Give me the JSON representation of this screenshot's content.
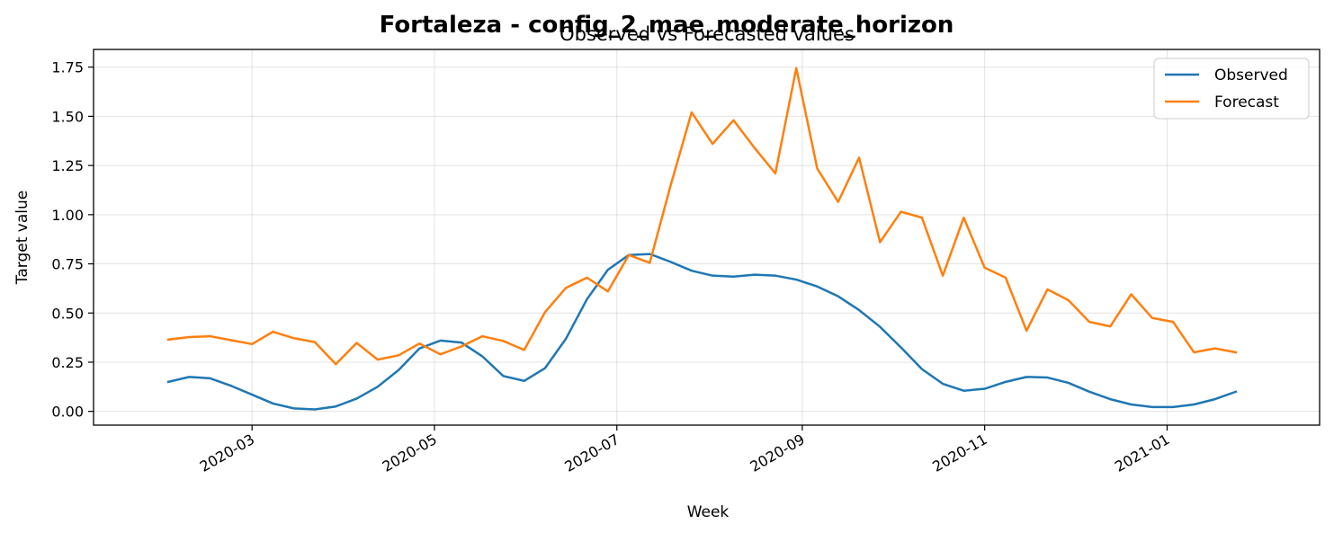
{
  "chart_data": {
    "type": "line",
    "title": "Fortaleza - config_2_mae_moderate_horizon",
    "subtitle": "Observed vs Forecasted values",
    "xlabel": "Week",
    "ylabel": "Target value",
    "ylim": [
      -0.07,
      1.84
    ],
    "xlim": [
      "2020-01-08",
      "2021-02-21"
    ],
    "y_ticks": [
      0.0,
      0.25,
      0.5,
      0.75,
      1.0,
      1.25,
      1.5,
      1.75
    ],
    "y_tick_labels": [
      "0.00",
      "0.25",
      "0.50",
      "0.75",
      "1.00",
      "1.25",
      "1.50",
      "1.75"
    ],
    "x_ticks": [
      "2020-03-01",
      "2020-05-01",
      "2020-07-01",
      "2020-09-01",
      "2020-11-01",
      "2021-01-01"
    ],
    "x_tick_labels": [
      "2020-03",
      "2020-05",
      "2020-07",
      "2020-09",
      "2020-11",
      "2021-01"
    ],
    "grid": true,
    "legend_position": "top-right",
    "x": [
      "2020-02-02",
      "2020-02-09",
      "2020-02-16",
      "2020-02-23",
      "2020-03-01",
      "2020-03-08",
      "2020-03-15",
      "2020-03-22",
      "2020-03-29",
      "2020-04-05",
      "2020-04-12",
      "2020-04-19",
      "2020-04-26",
      "2020-05-03",
      "2020-05-10",
      "2020-05-17",
      "2020-05-24",
      "2020-05-31",
      "2020-06-07",
      "2020-06-14",
      "2020-06-21",
      "2020-06-28",
      "2020-07-05",
      "2020-07-12",
      "2020-07-19",
      "2020-07-26",
      "2020-08-02",
      "2020-08-09",
      "2020-08-16",
      "2020-08-23",
      "2020-08-30",
      "2020-09-06",
      "2020-09-13",
      "2020-09-20",
      "2020-09-27",
      "2020-10-04",
      "2020-10-11",
      "2020-10-18",
      "2020-10-25",
      "2020-11-01",
      "2020-11-08",
      "2020-11-15",
      "2020-11-22",
      "2020-11-29",
      "2020-12-06",
      "2020-12-13",
      "2020-12-20",
      "2020-12-27",
      "2021-01-03",
      "2021-01-10",
      "2021-01-17",
      "2021-01-24"
    ],
    "series": [
      {
        "name": "Observed",
        "color": "#1f77b4",
        "values": [
          0.15,
          0.175,
          0.168,
          0.13,
          0.085,
          0.04,
          0.015,
          0.01,
          0.025,
          0.065,
          0.125,
          0.21,
          0.32,
          0.36,
          0.35,
          0.28,
          0.18,
          0.155,
          0.22,
          0.37,
          0.57,
          0.72,
          0.795,
          0.8,
          0.76,
          0.715,
          0.69,
          0.685,
          0.695,
          0.69,
          0.67,
          0.635,
          0.585,
          0.515,
          0.43,
          0.325,
          0.215,
          0.14,
          0.105,
          0.115,
          0.15,
          0.175,
          0.172,
          0.145,
          0.1,
          0.062,
          0.035,
          0.022,
          0.022,
          0.035,
          0.062,
          0.1
        ]
      },
      {
        "name": "Forecast",
        "color": "#ff7f0e",
        "values": [
          0.365,
          0.378,
          0.382,
          0.362,
          0.342,
          0.405,
          0.372,
          0.352,
          0.24,
          0.348,
          0.263,
          0.285,
          0.345,
          0.29,
          0.33,
          0.382,
          0.358,
          0.312,
          0.505,
          0.628,
          0.68,
          0.61,
          0.795,
          0.755,
          1.15,
          1.52,
          1.36,
          1.48,
          1.34,
          1.21,
          1.745,
          1.235,
          1.065,
          1.29,
          0.86,
          1.015,
          0.985,
          0.69,
          0.985,
          0.73,
          0.68,
          0.41,
          0.62,
          0.565,
          0.455,
          0.432,
          0.595,
          0.475,
          0.455,
          0.3,
          0.32,
          0.3
        ]
      }
    ]
  }
}
